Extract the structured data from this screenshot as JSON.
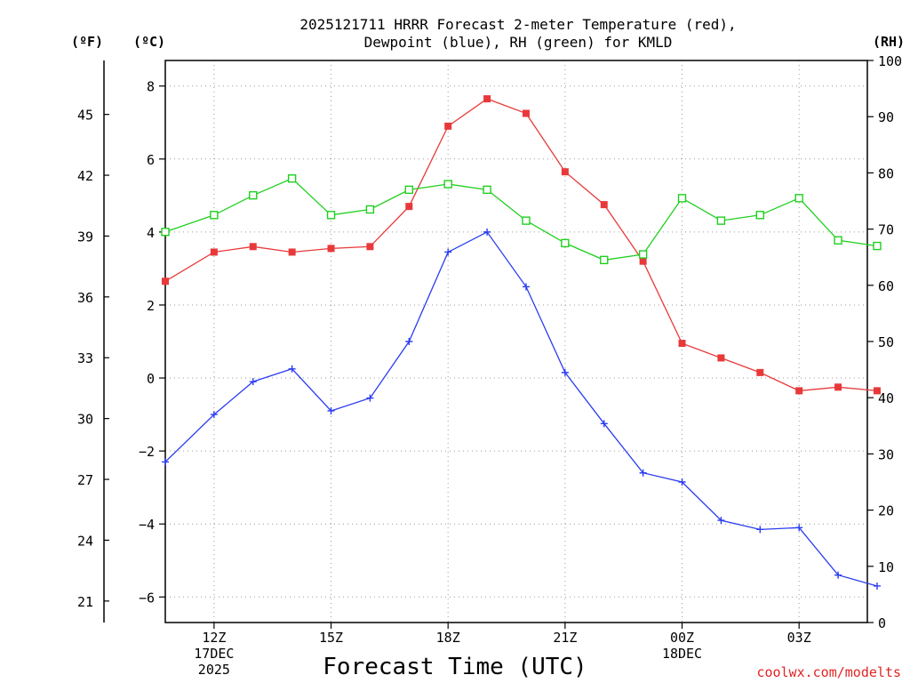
{
  "chart_data": {
    "type": "line",
    "title_line1": "2025121711 HRRR Forecast 2-meter Temperature (red),",
    "title_line2": "Dewpoint (blue), RH (green) for KMLD",
    "xlabel": "Forecast Time (UTC)",
    "credit": "coolwx.com/modelts",
    "unit_labels": {
      "fahrenheit": "(ºF)",
      "celsius": "(ºC)",
      "rh": "(RH)"
    },
    "x_hours": [
      10.75,
      12,
      13,
      14,
      15,
      16,
      17,
      18,
      19,
      20,
      21,
      22,
      23,
      24,
      25,
      26,
      27,
      28,
      29
    ],
    "xlim": [
      10.75,
      28.75
    ],
    "x_ticks": [
      {
        "hour": 12,
        "lines": [
          "12Z",
          "17DEC",
          "2025"
        ]
      },
      {
        "hour": 15,
        "lines": [
          "15Z"
        ]
      },
      {
        "hour": 18,
        "lines": [
          "18Z"
        ]
      },
      {
        "hour": 21,
        "lines": [
          "21Z"
        ]
      },
      {
        "hour": 24,
        "lines": [
          "00Z",
          "18DEC"
        ]
      },
      {
        "hour": 27,
        "lines": [
          "03Z"
        ]
      }
    ],
    "x_grid_hours": [
      12,
      15,
      18,
      21,
      24,
      27
    ],
    "ylim_c": [
      -6.7,
      8.7
    ],
    "y_ticks_c": [
      "-6",
      "-4",
      "-2",
      "0",
      "2",
      "4",
      "6",
      "8"
    ],
    "y_ticks_f": [
      "21",
      "24",
      "27",
      "30",
      "33",
      "36",
      "39",
      "42",
      "45"
    ],
    "ylim_rh": [
      0,
      100
    ],
    "y_ticks_rh": [
      "0",
      "10",
      "20",
      "30",
      "40",
      "50",
      "60",
      "70",
      "80",
      "90",
      "100"
    ],
    "series": [
      {
        "name": "Temperature",
        "color": "#e8393a",
        "axis": "c",
        "marker": "filled-square",
        "values": [
          2.65,
          3.45,
          3.6,
          3.45,
          3.55,
          3.6,
          4.7,
          6.9,
          7.65,
          7.25,
          5.65,
          4.75,
          3.2,
          0.95,
          0.55,
          0.15,
          -0.35,
          -0.25,
          -0.35
        ]
      },
      {
        "name": "Dewpoint",
        "color": "#2b3df0",
        "axis": "c",
        "marker": "plus",
        "values": [
          -2.3,
          -1.0,
          -0.1,
          0.25,
          -0.9,
          -0.55,
          1.0,
          3.45,
          4.0,
          2.5,
          0.15,
          -1.25,
          -2.6,
          -2.85,
          -3.9,
          -4.15,
          -4.1,
          -5.4,
          -5.7
        ]
      },
      {
        "name": "RH",
        "color": "#1fd01f",
        "axis": "rh",
        "marker": "open-square",
        "values": [
          69.5,
          72.5,
          76.0,
          79.0,
          72.5,
          73.5,
          77.0,
          78.0,
          77.0,
          71.5,
          67.5,
          64.5,
          65.5,
          75.5,
          71.5,
          72.5,
          75.5,
          68.0,
          67.0
        ]
      }
    ]
  }
}
